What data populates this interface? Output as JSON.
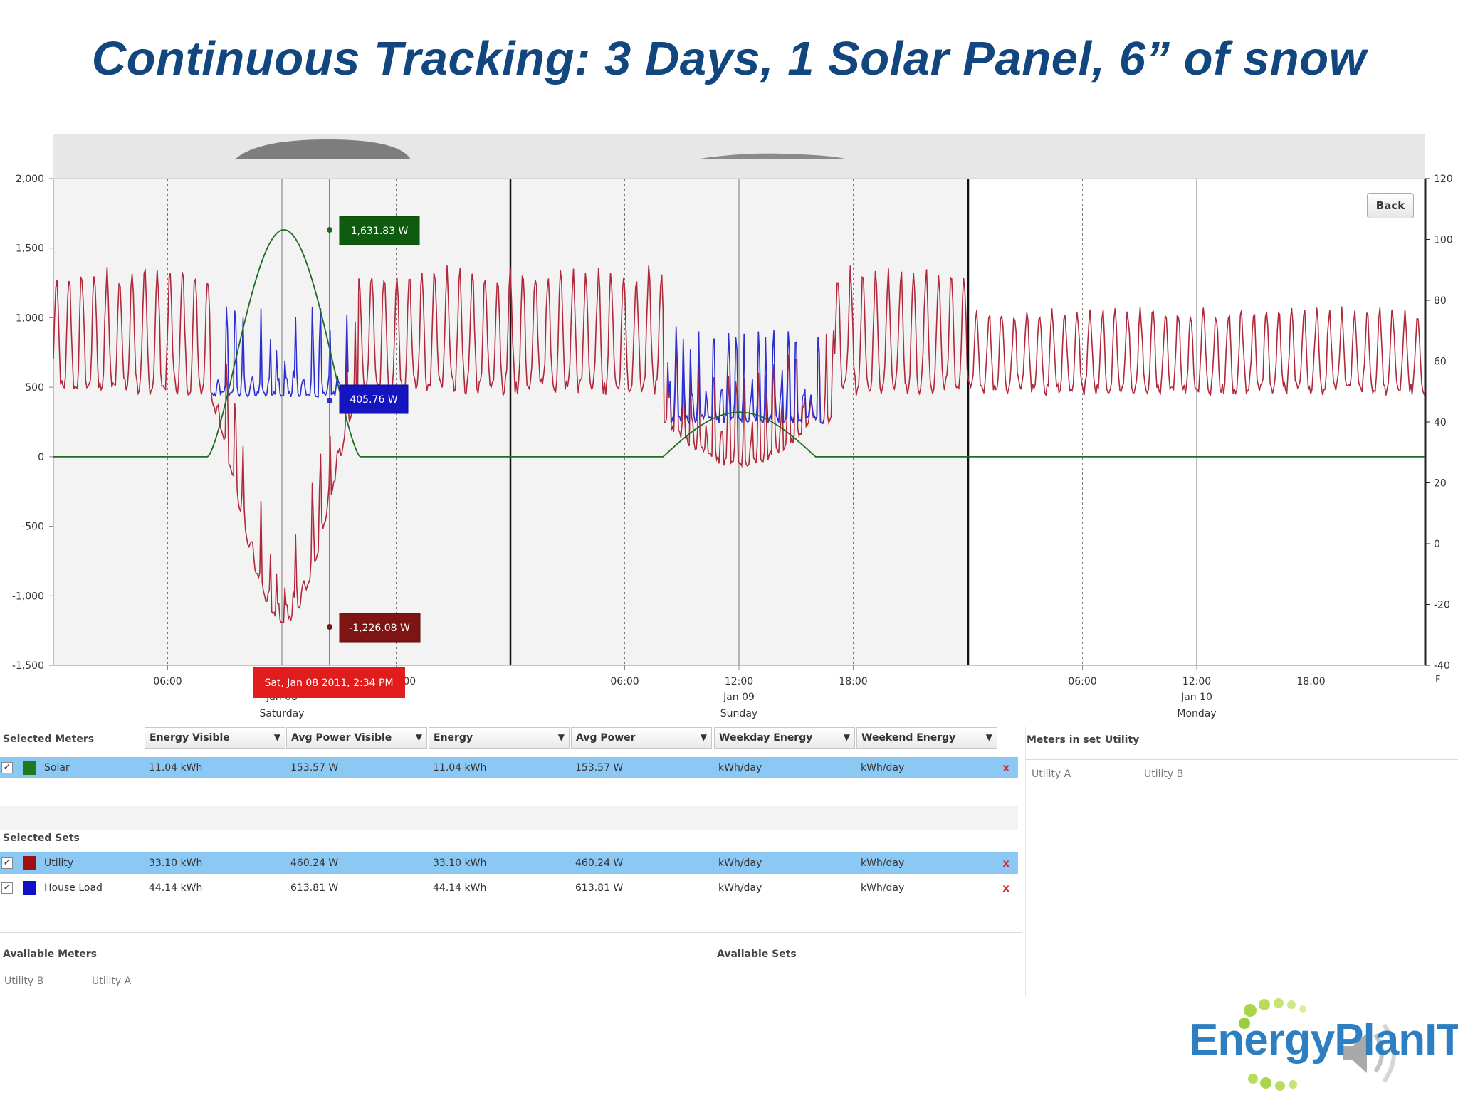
{
  "title": "Continuous Tracking: 3 Days, 1 Solar Panel, 6” of snow",
  "chart": {
    "left_axis_ticks": [
      "2,000",
      "1,500",
      "1,000",
      "500",
      "0",
      "-500",
      "-1,000",
      "-1,500"
    ],
    "right_axis_ticks": [
      "120",
      "100",
      "80",
      "60",
      "40",
      "20",
      "0",
      "-20",
      "-40"
    ],
    "x_time_ticks": [
      "06:00",
      "8:00",
      "06:00",
      "12:00",
      "18:00",
      "06:00",
      "12:00",
      "18:00"
    ],
    "day_labels": [
      {
        "date": "Jan 08",
        "weekday": "Saturday"
      },
      {
        "date": "Jan 09",
        "weekday": "Sunday"
      },
      {
        "date": "Jan 10",
        "weekday": "Monday"
      }
    ],
    "cursor_label": "Sat, Jan 08 2011, 2:34 PM",
    "callouts": {
      "solar": "1,631.83 W",
      "house": "405.76 W",
      "utility": "-1,226.08 W"
    },
    "back_label": "Back",
    "f_label": "F",
    "colors": {
      "solar": "#1f6b1f",
      "utility": "#b0283a",
      "house": "#2b2fd0",
      "cursor": "#e03030"
    }
  },
  "chart_data": {
    "type": "line",
    "ylim": [
      -1500,
      2000
    ],
    "y2lim": [
      -40,
      120
    ],
    "series": [
      {
        "name": "Solar",
        "peak_value": 1631.83
      },
      {
        "name": "Utility",
        "min_value": -1226.08
      },
      {
        "name": "House Load",
        "value_at_cursor": 405.76
      }
    ]
  },
  "grid": {
    "selected_meters_label": "Selected Meters",
    "columns": [
      {
        "label": "Energy Visible",
        "dd": "▼"
      },
      {
        "label": "Avg Power Visible",
        "dd": "▼"
      },
      {
        "label": "Energy",
        "dd": "▼"
      },
      {
        "label": "Avg Power",
        "dd": "▼"
      },
      {
        "label": "Weekday Energy",
        "dd": "▼"
      },
      {
        "label": "Weekend Energy",
        "dd": "▼"
      }
    ],
    "meters": [
      {
        "check": "✓",
        "name": "Solar",
        "color": "#1f7a1f",
        "values": [
          "11.04 kWh",
          "153.57 W",
          "11.04 kWh",
          "153.57 W",
          "kWh/day",
          "kWh/day"
        ],
        "delete": "x"
      }
    ],
    "selected_sets_label": "Selected Sets",
    "sets": [
      {
        "check": "✓",
        "name": "Utility",
        "color": "#a01010",
        "values": [
          "33.10 kWh",
          "460.24 W",
          "33.10 kWh",
          "460.24 W",
          "kWh/day",
          "kWh/day"
        ],
        "delete": "x"
      },
      {
        "check": "✓",
        "name": "House Load",
        "color": "#1010c8",
        "values": [
          "44.14 kWh",
          "613.81 W",
          "44.14 kWh",
          "613.81 W",
          "kWh/day",
          "kWh/day"
        ],
        "delete": "x"
      }
    ],
    "available_meters_label": "Available Meters",
    "available_meters": [
      "Utility B",
      "Utility A"
    ],
    "available_sets_label": "Available Sets"
  },
  "side_panel": {
    "meters_in_set_label": "Meters in set",
    "set_name": "Utility",
    "items": [
      "Utility A",
      "Utility B"
    ]
  },
  "logo": {
    "text": "EnergyPlanIT"
  }
}
